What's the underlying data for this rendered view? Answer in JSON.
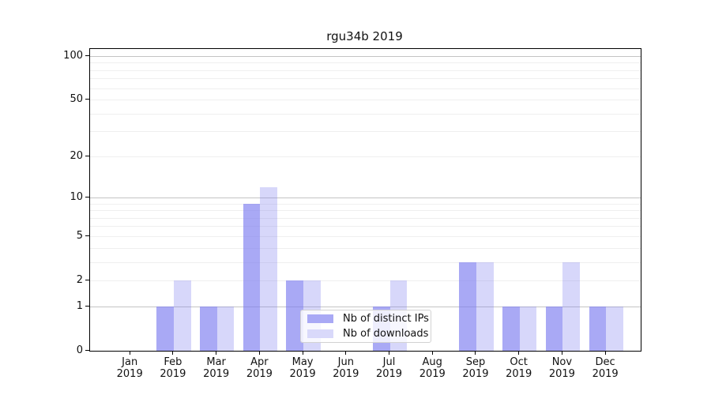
{
  "title": "rgu34b 2019",
  "chart_data": {
    "type": "bar",
    "title": "rgu34b 2019",
    "categories": [
      "Jan",
      "Feb",
      "Mar",
      "Apr",
      "May",
      "Jun",
      "Jul",
      "Aug",
      "Sep",
      "Oct",
      "Nov",
      "Dec"
    ],
    "x_year_label": "2019",
    "series": [
      {
        "name": "Nb of distinct IPs",
        "values": [
          0,
          1,
          1,
          9,
          2,
          0,
          1,
          0,
          3,
          1,
          1,
          1
        ]
      },
      {
        "name": "Nb of downloads",
        "values": [
          0,
          2,
          1,
          12,
          2,
          0,
          2,
          0,
          3,
          1,
          3,
          1
        ]
      }
    ],
    "y_scale": "log10(1+y)",
    "y_ticks": [
      0,
      1,
      2,
      5,
      10,
      20,
      50,
      100
    ],
    "y_gridlines_major": [
      1,
      10,
      100
    ],
    "y_gridlines_minor": [
      2,
      3,
      4,
      5,
      6,
      7,
      8,
      9,
      20,
      30,
      40,
      50,
      60,
      70,
      80,
      90
    ],
    "ylim": [
      0,
      112
    ],
    "grid": true,
    "legend": {
      "position": "lower center",
      "entries": [
        "Nb of distinct IPs",
        "Nb of downloads"
      ]
    },
    "colors": {
      "distinct_ips_display": "#a9a9f5",
      "downloads_display": "#d9d9fa",
      "distinct_ips_rgba": "rgba(124,124,240,0.66)",
      "downloads_rgba": "rgba(124,124,240,0.30)",
      "grid_major": "#c4c4c4",
      "grid_minor": "#efefef",
      "axis": "#000000"
    }
  }
}
